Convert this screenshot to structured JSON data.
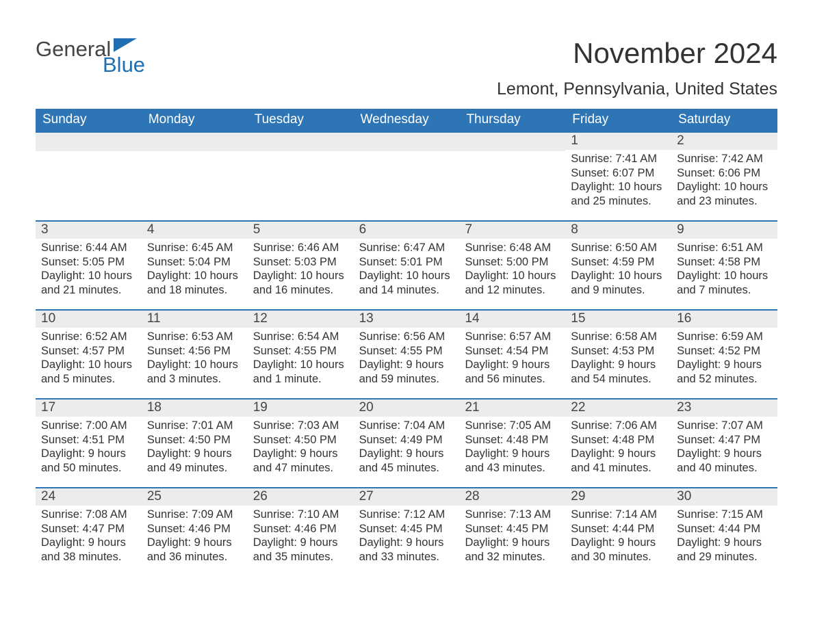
{
  "logo": {
    "word1": "General",
    "word2": "Blue"
  },
  "title": "November 2024",
  "location": "Lemont, Pennsylvania, United States",
  "colors": {
    "header_bg": "#2e75b6",
    "daybar_bg": "#ececec",
    "week_border": "#2e75b6",
    "logo_blue": "#1f6fb2",
    "text": "#333333"
  },
  "layout": {
    "columns": 7,
    "rows": 5,
    "first_day_column": 5
  },
  "weekday_labels": [
    "Sunday",
    "Monday",
    "Tuesday",
    "Wednesday",
    "Thursday",
    "Friday",
    "Saturday"
  ],
  "days": [
    {
      "n": 1,
      "sunrise": "7:41 AM",
      "sunset": "6:07 PM",
      "daylight": "10 hours and 25 minutes."
    },
    {
      "n": 2,
      "sunrise": "7:42 AM",
      "sunset": "6:06 PM",
      "daylight": "10 hours and 23 minutes."
    },
    {
      "n": 3,
      "sunrise": "6:44 AM",
      "sunset": "5:05 PM",
      "daylight": "10 hours and 21 minutes."
    },
    {
      "n": 4,
      "sunrise": "6:45 AM",
      "sunset": "5:04 PM",
      "daylight": "10 hours and 18 minutes."
    },
    {
      "n": 5,
      "sunrise": "6:46 AM",
      "sunset": "5:03 PM",
      "daylight": "10 hours and 16 minutes."
    },
    {
      "n": 6,
      "sunrise": "6:47 AM",
      "sunset": "5:01 PM",
      "daylight": "10 hours and 14 minutes."
    },
    {
      "n": 7,
      "sunrise": "6:48 AM",
      "sunset": "5:00 PM",
      "daylight": "10 hours and 12 minutes."
    },
    {
      "n": 8,
      "sunrise": "6:50 AM",
      "sunset": "4:59 PM",
      "daylight": "10 hours and 9 minutes."
    },
    {
      "n": 9,
      "sunrise": "6:51 AM",
      "sunset": "4:58 PM",
      "daylight": "10 hours and 7 minutes."
    },
    {
      "n": 10,
      "sunrise": "6:52 AM",
      "sunset": "4:57 PM",
      "daylight": "10 hours and 5 minutes."
    },
    {
      "n": 11,
      "sunrise": "6:53 AM",
      "sunset": "4:56 PM",
      "daylight": "10 hours and 3 minutes."
    },
    {
      "n": 12,
      "sunrise": "6:54 AM",
      "sunset": "4:55 PM",
      "daylight": "10 hours and 1 minute."
    },
    {
      "n": 13,
      "sunrise": "6:56 AM",
      "sunset": "4:55 PM",
      "daylight": "9 hours and 59 minutes."
    },
    {
      "n": 14,
      "sunrise": "6:57 AM",
      "sunset": "4:54 PM",
      "daylight": "9 hours and 56 minutes."
    },
    {
      "n": 15,
      "sunrise": "6:58 AM",
      "sunset": "4:53 PM",
      "daylight": "9 hours and 54 minutes."
    },
    {
      "n": 16,
      "sunrise": "6:59 AM",
      "sunset": "4:52 PM",
      "daylight": "9 hours and 52 minutes."
    },
    {
      "n": 17,
      "sunrise": "7:00 AM",
      "sunset": "4:51 PM",
      "daylight": "9 hours and 50 minutes."
    },
    {
      "n": 18,
      "sunrise": "7:01 AM",
      "sunset": "4:50 PM",
      "daylight": "9 hours and 49 minutes."
    },
    {
      "n": 19,
      "sunrise": "7:03 AM",
      "sunset": "4:50 PM",
      "daylight": "9 hours and 47 minutes."
    },
    {
      "n": 20,
      "sunrise": "7:04 AM",
      "sunset": "4:49 PM",
      "daylight": "9 hours and 45 minutes."
    },
    {
      "n": 21,
      "sunrise": "7:05 AM",
      "sunset": "4:48 PM",
      "daylight": "9 hours and 43 minutes."
    },
    {
      "n": 22,
      "sunrise": "7:06 AM",
      "sunset": "4:48 PM",
      "daylight": "9 hours and 41 minutes."
    },
    {
      "n": 23,
      "sunrise": "7:07 AM",
      "sunset": "4:47 PM",
      "daylight": "9 hours and 40 minutes."
    },
    {
      "n": 24,
      "sunrise": "7:08 AM",
      "sunset": "4:47 PM",
      "daylight": "9 hours and 38 minutes."
    },
    {
      "n": 25,
      "sunrise": "7:09 AM",
      "sunset": "4:46 PM",
      "daylight": "9 hours and 36 minutes."
    },
    {
      "n": 26,
      "sunrise": "7:10 AM",
      "sunset": "4:46 PM",
      "daylight": "9 hours and 35 minutes."
    },
    {
      "n": 27,
      "sunrise": "7:12 AM",
      "sunset": "4:45 PM",
      "daylight": "9 hours and 33 minutes."
    },
    {
      "n": 28,
      "sunrise": "7:13 AM",
      "sunset": "4:45 PM",
      "daylight": "9 hours and 32 minutes."
    },
    {
      "n": 29,
      "sunrise": "7:14 AM",
      "sunset": "4:44 PM",
      "daylight": "9 hours and 30 minutes."
    },
    {
      "n": 30,
      "sunrise": "7:15 AM",
      "sunset": "4:44 PM",
      "daylight": "9 hours and 29 minutes."
    }
  ],
  "label_prefixes": {
    "sunrise": "Sunrise: ",
    "sunset": "Sunset: ",
    "daylight": "Daylight: "
  }
}
